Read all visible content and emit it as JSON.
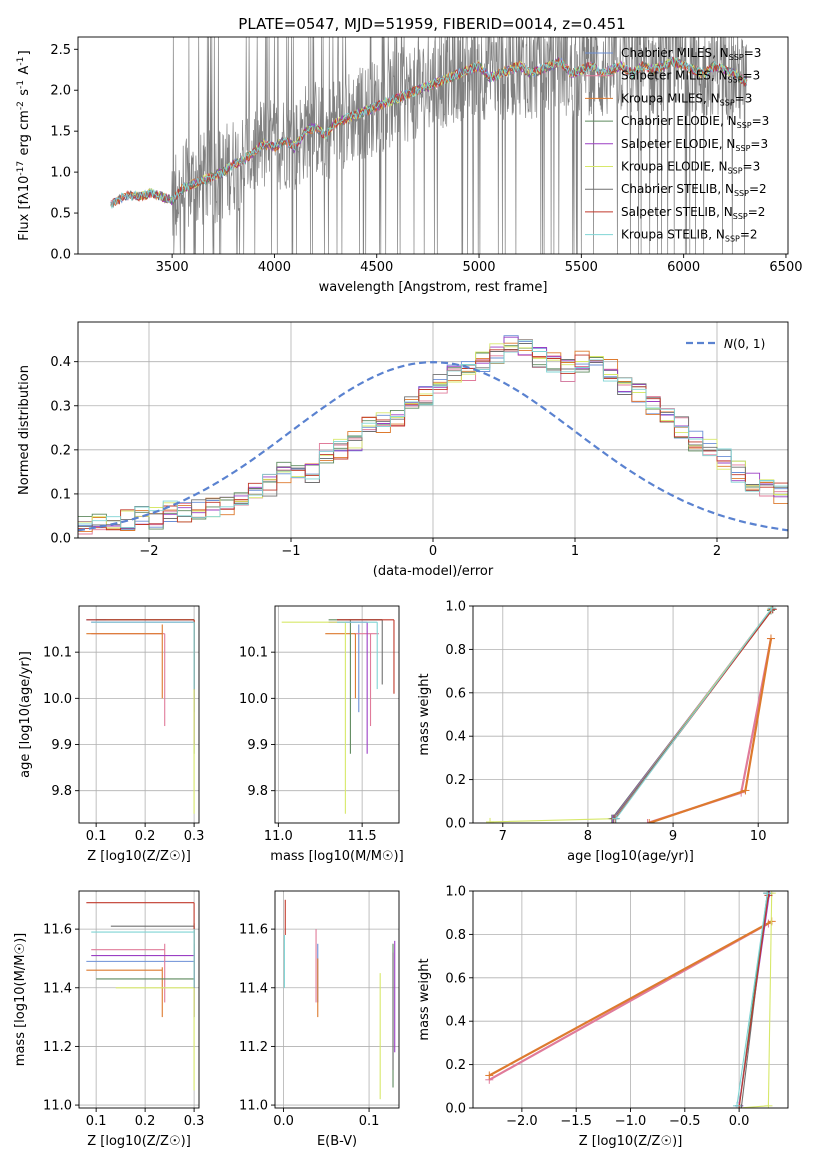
{
  "figure": {
    "title": "PLATE=0547, MJD=51959, FIBERID=0014, z=0.451",
    "series_names": [
      "Chabrier MILES",
      "Salpeter MILES",
      "Kroupa MILES",
      "Chabrier ELODIE",
      "Salpeter ELODIE",
      "Kroupa ELODIE",
      "Chabrier STELIB",
      "Salpeter STELIB",
      "Kroupa STELIB"
    ],
    "series_colors": [
      "#6b8fd6",
      "#e07b9a",
      "#dd7a2e",
      "#5e8a5e",
      "#9b3fc4",
      "#d7e86a",
      "#707070",
      "#c0392b",
      "#7fd4d4"
    ],
    "nssp": [
      "3",
      "3",
      "3",
      "3",
      "3",
      "3",
      "2",
      "2",
      "2"
    ],
    "nssp_prefix": "N",
    "nssp_sub": "SSP",
    "nssp_suffix": "="
  },
  "chart_data": [
    {
      "type": "line",
      "id": "spectrum",
      "xlabel": "wavelength [Angstrom, rest frame]",
      "ylabel": "Flux [f_λ10^-17 erg cm^-2 s^-1 A^-1]",
      "xlim": [
        3040,
        6510
      ],
      "ylim": [
        0,
        2.65
      ],
      "xticks": [
        3500,
        4000,
        4500,
        5000,
        5500,
        6000,
        6500
      ],
      "yticks": [
        0.0,
        0.5,
        1.0,
        1.5,
        2.0,
        2.5
      ],
      "grid": false,
      "legend": "top-right",
      "x": [
        3200,
        3250,
        3300,
        3350,
        3400,
        3450,
        3500,
        3550,
        3600,
        3650,
        3700,
        3750,
        3800,
        3850,
        3900,
        3950,
        4000,
        4050,
        4100,
        4150,
        4200,
        4250,
        4300,
        4350,
        4400,
        4450,
        4500,
        4550,
        4600,
        4650,
        4700,
        4750,
        4800,
        4850,
        4900,
        4950,
        5000,
        5050,
        5100,
        5150,
        5200,
        5250,
        5300,
        5350,
        5400,
        5450,
        5500,
        5550,
        5600,
        5650,
        5700,
        5750,
        5800,
        5850,
        5900,
        5950,
        6000,
        6050,
        6100,
        6150,
        6200,
        6250,
        6300
      ],
      "model": [
        0.6,
        0.68,
        0.72,
        0.7,
        0.75,
        0.7,
        0.65,
        0.8,
        0.85,
        0.9,
        0.95,
        1.0,
        1.1,
        1.15,
        1.25,
        1.35,
        1.3,
        1.4,
        1.3,
        1.5,
        1.55,
        1.45,
        1.6,
        1.65,
        1.7,
        1.75,
        1.8,
        1.85,
        1.9,
        1.95,
        2.0,
        2.05,
        2.1,
        2.15,
        2.2,
        2.25,
        2.3,
        2.15,
        2.2,
        2.25,
        2.3,
        2.2,
        2.25,
        2.3,
        2.35,
        2.2,
        2.25,
        2.3,
        2.2,
        2.25,
        2.3,
        2.2,
        2.3,
        2.25,
        2.3,
        2.35,
        2.3,
        2.25,
        2.2,
        2.3,
        2.25,
        2.2,
        2.1
      ]
    },
    {
      "type": "bar",
      "id": "residual_histogram",
      "xlabel": "(data-model)/error",
      "ylabel": "Normed distribution",
      "xlim": [
        -2.5,
        2.5
      ],
      "ylim": [
        0,
        0.49
      ],
      "xticks": [
        -2,
        -1,
        0,
        1,
        2
      ],
      "yticks": [
        0.0,
        0.1,
        0.2,
        0.3,
        0.4
      ],
      "grid": true,
      "legend": "top-right",
      "reference_curve": "N(0,1)",
      "bin_width": 0.1,
      "bin_start": -2.5,
      "values": [
        0.03,
        0.03,
        0.035,
        0.04,
        0.05,
        0.045,
        0.06,
        0.055,
        0.065,
        0.07,
        0.075,
        0.09,
        0.1,
        0.12,
        0.15,
        0.16,
        0.15,
        0.19,
        0.2,
        0.22,
        0.25,
        0.26,
        0.27,
        0.3,
        0.32,
        0.35,
        0.37,
        0.38,
        0.4,
        0.42,
        0.44,
        0.43,
        0.41,
        0.4,
        0.38,
        0.4,
        0.39,
        0.38,
        0.35,
        0.33,
        0.3,
        0.28,
        0.25,
        0.22,
        0.2,
        0.18,
        0.15,
        0.13,
        0.12,
        0.1
      ]
    },
    {
      "type": "scatter",
      "id": "age_vs_z",
      "xlabel": "Z [log10(Z/Z☉)]",
      "ylabel": "age [log10(age/yr)]",
      "xlim": [
        0.065,
        0.31
      ],
      "ylim": [
        9.73,
        10.2
      ],
      "xticks": [
        0.1,
        0.2,
        0.3
      ],
      "yticks": [
        9.8,
        9.9,
        10.0,
        10.1
      ],
      "grid": true,
      "best_age": [
        10.17,
        10.14,
        10.14,
        10.17,
        10.165,
        10.17,
        10.17,
        10.17,
        10.165
      ],
      "best_z": [
        0.3,
        0.24,
        0.235,
        0.3,
        0.3,
        0.3,
        0.3,
        0.3,
        0.3
      ],
      "age_range": [
        [
          9.97,
          10.16
        ],
        [
          9.94,
          10.14
        ],
        [
          10.0,
          10.16
        ],
        [
          9.88,
          10.17
        ],
        [
          9.9,
          10.165
        ],
        [
          9.75,
          10.17
        ],
        [
          10.02,
          10.17
        ],
        [
          10.02,
          10.17
        ],
        [
          10.02,
          10.165
        ]
      ],
      "z_range": [
        [
          0.08,
          0.3
        ],
        [
          0.09,
          0.24
        ],
        [
          0.08,
          0.235
        ],
        [
          0.1,
          0.3
        ],
        [
          0.09,
          0.3
        ],
        [
          0.12,
          0.3
        ],
        [
          0.1,
          0.3
        ],
        [
          0.08,
          0.3
        ],
        [
          0.09,
          0.3
        ]
      ]
    },
    {
      "type": "scatter",
      "id": "age_vs_mass",
      "xlabel": "mass [log10(M/M☉)]",
      "ylabel": "",
      "xlim": [
        10.98,
        11.72
      ],
      "ylim": [
        9.73,
        10.2
      ],
      "xticks": [
        11.0,
        11.5
      ],
      "yticks": [
        9.8,
        9.9,
        10.0,
        10.1
      ],
      "grid": true,
      "best_age": [
        10.17,
        10.14,
        10.14,
        10.17,
        10.165,
        10.165,
        10.17,
        10.17,
        10.165
      ],
      "best_mass": [
        11.48,
        11.55,
        11.46,
        11.43,
        11.53,
        11.4,
        11.62,
        11.69,
        11.59
      ],
      "age_range": [
        [
          9.97,
          10.16
        ],
        [
          9.94,
          10.14
        ],
        [
          10.0,
          10.14
        ],
        [
          9.88,
          10.17
        ],
        [
          9.88,
          10.165
        ],
        [
          9.75,
          10.165
        ],
        [
          10.03,
          10.17
        ],
        [
          10.01,
          10.17
        ],
        [
          10.02,
          10.165
        ]
      ],
      "mass_range": [
        [
          11.42,
          11.62
        ],
        [
          11.45,
          11.6
        ],
        [
          11.28,
          11.46
        ],
        [
          11.3,
          11.62
        ],
        [
          11.3,
          11.53
        ],
        [
          11.02,
          11.4
        ],
        [
          11.35,
          11.62
        ],
        [
          11.35,
          11.69
        ],
        [
          11.35,
          11.59
        ]
      ]
    },
    {
      "type": "line",
      "id": "weight_vs_age",
      "xlabel": "age [log10(age/yr)]",
      "ylabel": "mass weight",
      "xlim": [
        6.65,
        10.35
      ],
      "ylim": [
        0,
        1.0
      ],
      "xticks": [
        7,
        8,
        9,
        10
      ],
      "yticks": [
        0.0,
        0.2,
        0.4,
        0.6,
        0.8,
        1.0
      ],
      "grid": true,
      "series": [
        {
          "x": [
            8.3,
            10.15
          ],
          "y": [
            0.02,
            0.98
          ]
        },
        {
          "x": [
            8.7,
            9.8,
            10.15
          ],
          "y": [
            0.0,
            0.14,
            0.85
          ]
        },
        {
          "x": [
            8.72,
            9.85,
            10.15
          ],
          "y": [
            0.0,
            0.15,
            0.85
          ]
        },
        {
          "x": [
            8.28,
            10.15
          ],
          "y": [
            0.02,
            0.98
          ]
        },
        {
          "x": [
            8.29,
            10.15
          ],
          "y": [
            0.02,
            0.985
          ]
        },
        {
          "x": [
            6.85,
            8.3,
            10.15
          ],
          "y": [
            0.005,
            0.02,
            0.985
          ]
        },
        {
          "x": [
            8.3,
            10.17
          ],
          "y": [
            0.02,
            0.985
          ]
        },
        {
          "x": [
            8.32,
            10.17
          ],
          "y": [
            0.02,
            0.985
          ]
        },
        {
          "x": [
            8.33,
            10.16
          ],
          "y": [
            0.02,
            0.99
          ]
        }
      ]
    },
    {
      "type": "scatter",
      "id": "mass_vs_z",
      "xlabel": "Z [log10(Z/Z☉)]",
      "ylabel": "mass [log10(M/M☉)]",
      "xlim": [
        0.065,
        0.31
      ],
      "ylim": [
        10.99,
        11.73
      ],
      "xticks": [
        0.1,
        0.2,
        0.3
      ],
      "yticks": [
        11.0,
        11.2,
        11.4,
        11.6
      ],
      "grid": true,
      "best_mass": [
        11.49,
        11.53,
        11.46,
        11.43,
        11.51,
        11.4,
        11.61,
        11.69,
        11.59
      ],
      "best_z": [
        0.3,
        0.24,
        0.235,
        0.3,
        0.3,
        0.3,
        0.3,
        0.3,
        0.3
      ],
      "mass_range": [
        [
          11.42,
          11.55
        ],
        [
          11.35,
          11.55
        ],
        [
          11.3,
          11.47
        ],
        [
          11.3,
          11.62
        ],
        [
          11.3,
          11.52
        ],
        [
          11.05,
          11.4
        ],
        [
          11.4,
          11.61
        ],
        [
          11.4,
          11.69
        ],
        [
          11.4,
          11.6
        ]
      ],
      "z_range": [
        [
          0.08,
          0.3
        ],
        [
          0.09,
          0.24
        ],
        [
          0.08,
          0.235
        ],
        [
          0.1,
          0.3
        ],
        [
          0.09,
          0.3
        ],
        [
          0.14,
          0.3
        ],
        [
          0.13,
          0.3
        ],
        [
          0.08,
          0.3
        ],
        [
          0.09,
          0.3
        ]
      ]
    },
    {
      "type": "scatter",
      "id": "mass_vs_ebv",
      "xlabel": "E(B-V)",
      "ylabel": "",
      "xlim": [
        -0.01,
        0.135
      ],
      "ylim": [
        10.99,
        11.73
      ],
      "xticks": [
        0.0,
        0.1
      ],
      "yticks": [
        11.0,
        11.2,
        11.4,
        11.6
      ],
      "grid": true,
      "ebv": [
        0.04,
        0.038,
        0.04,
        0.128,
        0.13,
        0.113,
        0.128,
        0.002,
        0.001
      ],
      "mass_range": [
        [
          11.35,
          11.55
        ],
        [
          11.35,
          11.6
        ],
        [
          11.3,
          11.5
        ],
        [
          11.06,
          11.55
        ],
        [
          11.18,
          11.56
        ],
        [
          11.02,
          11.45
        ],
        [
          11.12,
          11.52
        ],
        [
          11.58,
          11.7
        ],
        [
          11.4,
          11.58
        ]
      ]
    },
    {
      "type": "line",
      "id": "weight_vs_z",
      "xlabel": "Z [log10(Z/Z☉)]",
      "ylabel": "mass weight",
      "xlim": [
        -2.45,
        0.45
      ],
      "ylim": [
        0,
        1.0
      ],
      "xticks": [
        -2.0,
        -1.5,
        -1.0,
        -0.5,
        0.0
      ],
      "yticks": [
        0.0,
        0.2,
        0.4,
        0.6,
        0.8,
        1.0
      ],
      "grid": true,
      "series": [
        {
          "x": [
            0.0,
            0.27
          ],
          "y": [
            0.01,
            0.99
          ]
        },
        {
          "x": [
            -2.3,
            0.27
          ],
          "y": [
            0.13,
            0.85
          ]
        },
        {
          "x": [
            -2.3,
            0.3
          ],
          "y": [
            0.15,
            0.86
          ]
        },
        {
          "x": [
            0.0,
            0.26
          ],
          "y": [
            0.01,
            0.99
          ]
        },
        {
          "x": [
            0.0,
            0.28
          ],
          "y": [
            0.01,
            0.99
          ]
        },
        {
          "x": [
            0.0,
            0.27,
            0.3
          ],
          "y": [
            0.0,
            0.01,
            0.99
          ]
        },
        {
          "x": [
            0.02,
            0.26
          ],
          "y": [
            0.0,
            0.99
          ]
        },
        {
          "x": [
            0.0,
            0.27
          ],
          "y": [
            0.0,
            0.98
          ]
        },
        {
          "x": [
            -0.02,
            0.26
          ],
          "y": [
            0.01,
            0.99
          ]
        }
      ]
    }
  ]
}
